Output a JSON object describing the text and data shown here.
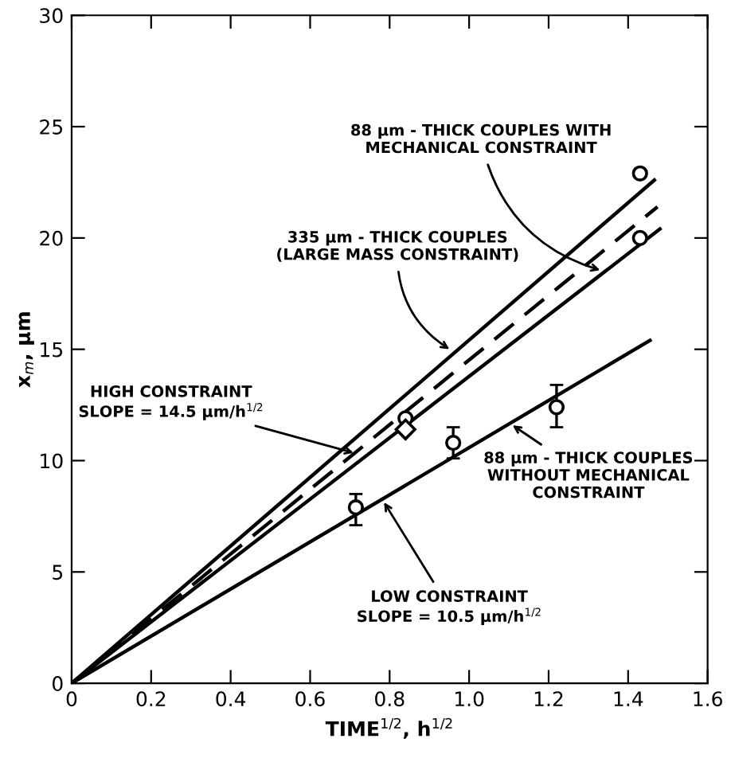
{
  "chart_data": {
    "type": "line",
    "xlabel": "TIME$^{1/2}$, h$^{1/2}$",
    "ylabel": "x$_{m}$, μm",
    "xlim": [
      0,
      1.6
    ],
    "ylim": [
      0,
      30
    ],
    "xticks": [
      0,
      0.2,
      0.4,
      0.6,
      0.8,
      {
        "value": 1.0,
        "label": "1.0"
      },
      1.2,
      1.4,
      1.6
    ],
    "yticks": [
      0,
      5,
      10,
      15,
      20,
      25,
      30
    ],
    "grid": false,
    "legend": false,
    "series": [
      {
        "color": "#000000",
        "line_style": "solid",
        "x": [
          0,
          1.466
        ],
        "values": [
          0,
          22.6
        ]
      },
      {
        "color": "#000000",
        "line_style": "dashed",
        "x": [
          0,
          1.474
        ],
        "values": [
          0,
          21.4
        ]
      },
      {
        "color": "#000000",
        "line_style": "solid",
        "x": [
          0,
          1.48
        ],
        "values": [
          0,
          20.4
        ]
      },
      {
        "color": "#000000",
        "line_style": "solid",
        "x": [
          0,
          1.455
        ],
        "values": [
          0,
          15.4
        ]
      },
      {
        "type": "scatter",
        "color": "#000000",
        "marker": "circle",
        "x": [
          1.43,
          1.43,
          0.84
        ],
        "values": [
          22.9,
          20.0,
          11.9
        ]
      },
      {
        "type": "scatter",
        "color": "#000000",
        "marker": "diamond",
        "x": [
          0.84
        ],
        "values": [
          11.4
        ]
      },
      {
        "type": "scatter",
        "color": "#000000",
        "marker": "circle",
        "x": [
          0.715,
          0.96,
          1.22
        ],
        "values": [
          7.9,
          10.8,
          12.4
        ],
        "errors": [
          [
            7.1,
            8.5
          ],
          [
            10.1,
            11.5
          ],
          [
            11.5,
            13.4
          ]
        ]
      }
    ],
    "annotations": [
      {
        "text": "88 μm - THICK COUPLES WITH\nMECHANICAL CONSTRAINT",
        "x": 1.34,
        "y": 18.5
      },
      {
        "text": "335 μm - THICK COUPLES\n(LARGE MASS CONSTRAINT)",
        "x": 0.96,
        "y": 14.9
      },
      {
        "text": "HIGH CONSTRAINT\nSLOPE = 14.5 μm/h$^{1/2}$",
        "x": 0.72,
        "y": 10.3
      },
      {
        "text": "88 μm - THICK COUPLES\nWITHOUT MECHANICAL\nCONSTRAINT",
        "x": 1.1,
        "y": 11.7
      },
      {
        "text": "LOW CONSTRAINT\nSLOPE = 10.5 μm/h$^{1/2}$",
        "x": 0.78,
        "y": 8.3
      }
    ]
  }
}
